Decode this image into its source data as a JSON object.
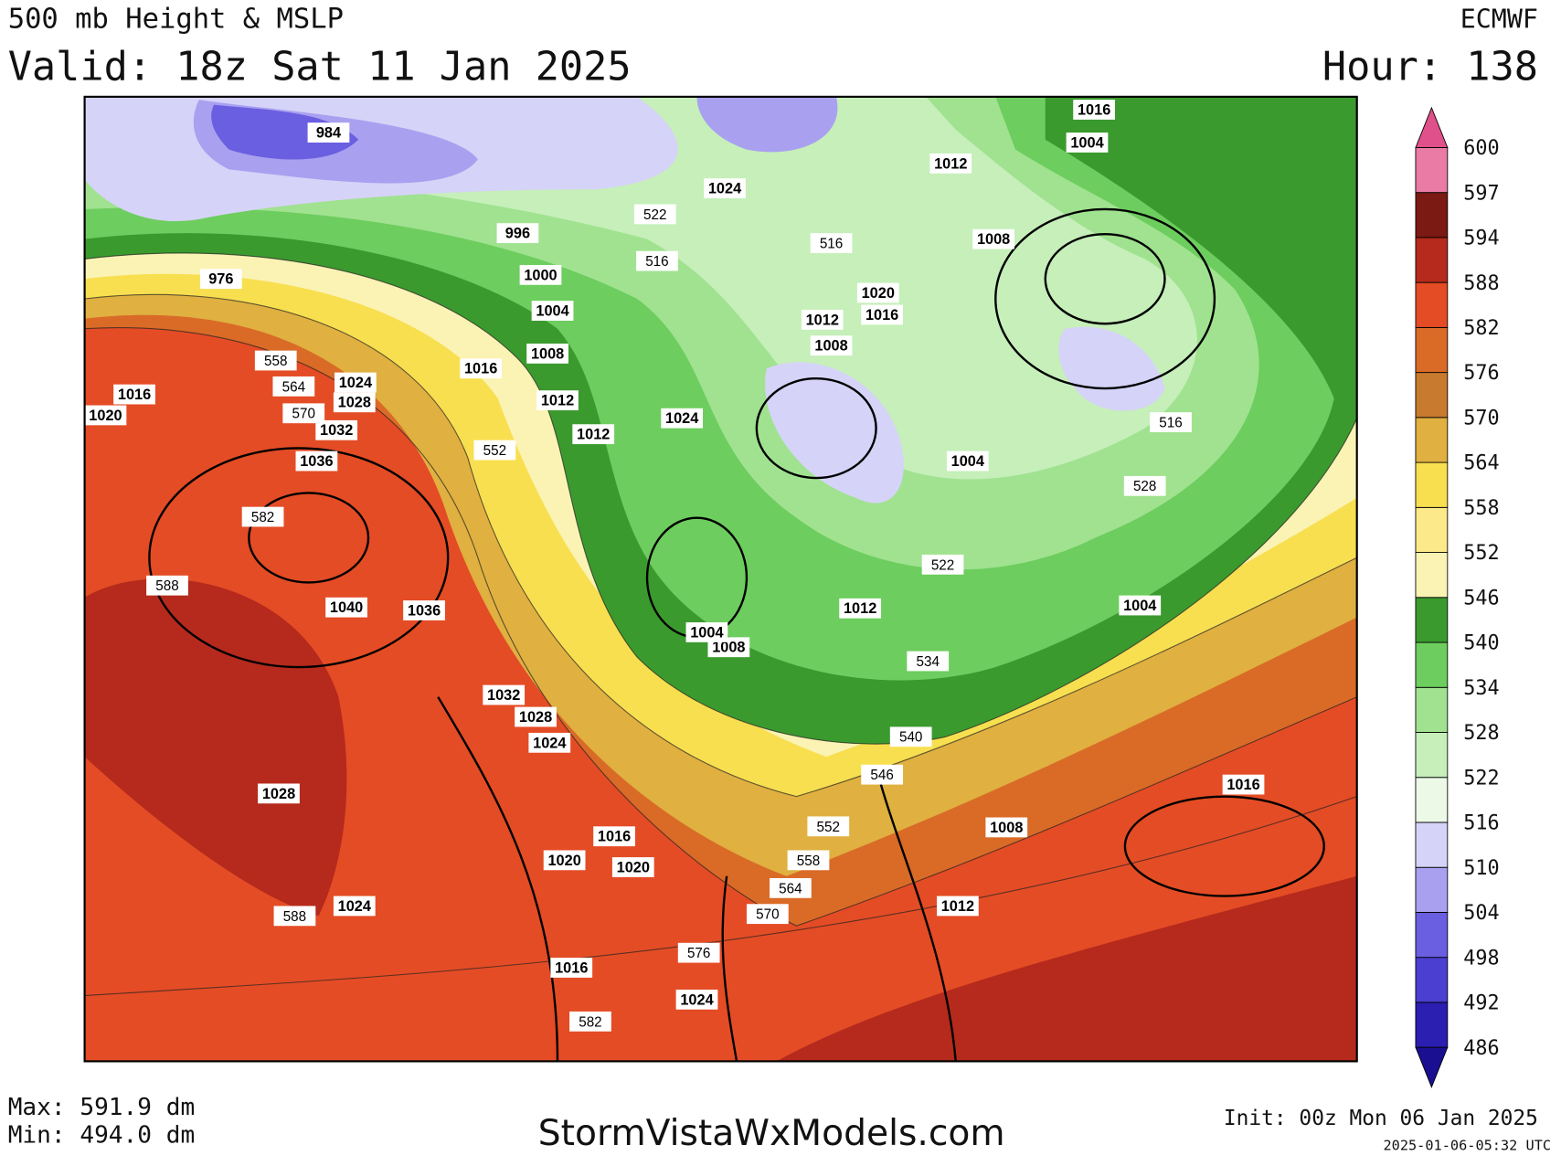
{
  "header": {
    "title": "500 mb Height & MSLP",
    "valid": "Valid: 18z Sat 11 Jan 2025",
    "model": "ECMWF",
    "hour": "Hour: 138"
  },
  "colorbar": {
    "levels": [
      486,
      492,
      498,
      504,
      510,
      516,
      522,
      528,
      534,
      540,
      546,
      552,
      558,
      564,
      570,
      576,
      582,
      588,
      594,
      597,
      600
    ],
    "colors": [
      "#2a1fb0",
      "#4a3fd0",
      "#6a5fe0",
      "#a9a0f0",
      "#d6d3f8",
      "#ecf9e6",
      "#c6efba",
      "#a0e290",
      "#6dcd5e",
      "#3b9a2e",
      "#fbf3b4",
      "#fbe98a",
      "#f8df50",
      "#e0b040",
      "#c87a2e",
      "#d96b27",
      "#e44c25",
      "#b52a1c",
      "#7a1a12",
      "#e97ba5"
    ],
    "under_color": "#1a0f90",
    "over_color": "#e0508a"
  },
  "map": {
    "pressure_labels": [
      "984",
      "1024",
      "996",
      "1000",
      "1004",
      "1008",
      "1016",
      "1012",
      "1012",
      "1024",
      "1024",
      "1028",
      "1032",
      "1036",
      "1040",
      "1036",
      "1020",
      "1016",
      "1012",
      "1008",
      "1004",
      "1012",
      "1008",
      "1016",
      "1004",
      "976",
      "1016",
      "1020",
      "1032",
      "1028",
      "1024",
      "1028",
      "1024",
      "1016",
      "1020",
      "1020",
      "1016",
      "1024",
      "1012",
      "1004",
      "1008",
      "1016",
      "1008",
      "1012",
      "1004"
    ],
    "height_labels": [
      "516",
      "528",
      "522",
      "534",
      "540",
      "546",
      "552",
      "558",
      "564",
      "570",
      "576",
      "582",
      "588",
      "582",
      "588",
      "552",
      "516",
      "522",
      "516",
      "558",
      "564",
      "570"
    ]
  },
  "footer": {
    "max": "Max: 591.9 dm",
    "min": "Min: 494.0 dm",
    "site": "StormVistaWxModels.com",
    "init": "Init: 00z Mon 06 Jan 2025",
    "timestamp": "2025-01-06-05:32 UTC"
  }
}
